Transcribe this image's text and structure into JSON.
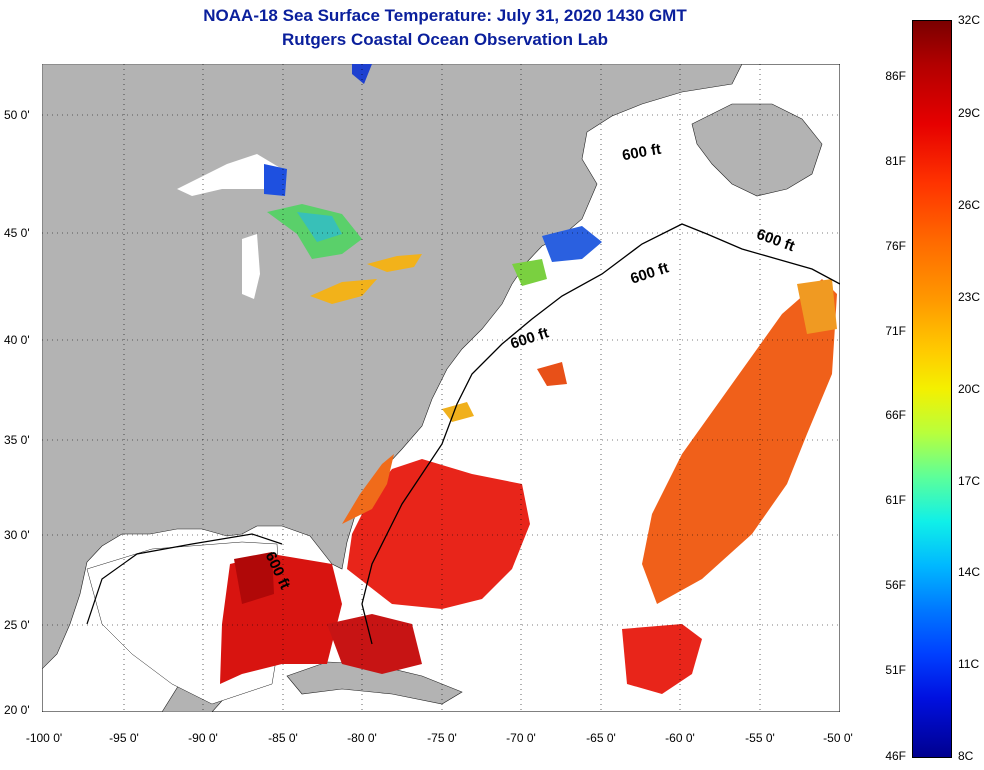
{
  "header": {
    "title": "NOAA-18 Sea Surface Temperature:  July 31, 2020 1430 GMT",
    "subtitle": "Rutgers Coastal Ocean Observation Lab"
  },
  "map": {
    "lat_labels": [
      "50 0'",
      "45 0'",
      "40 0'",
      "35 0'",
      "30 0'",
      "25 0'",
      "20 0'"
    ],
    "lon_labels": [
      "-100 0'",
      "-95 0'",
      "-90 0'",
      "-85 0'",
      "-80 0'",
      "-75 0'",
      "-70 0'",
      "-65 0'",
      "-60 0'",
      "-55 0'",
      "-50 0'"
    ],
    "contour_label": "600 ft",
    "colors": {
      "land": "#b3b3b3",
      "cloud": "#ffffff",
      "grid": "#000000"
    }
  },
  "colorbar": {
    "fahrenheit": [
      "86F",
      "81F",
      "76F",
      "71F",
      "66F",
      "61F",
      "56F",
      "51F",
      "46F"
    ],
    "celsius": [
      "32C",
      "29C",
      "26C",
      "23C",
      "20C",
      "17C",
      "14C",
      "11C",
      "8C"
    ]
  }
}
